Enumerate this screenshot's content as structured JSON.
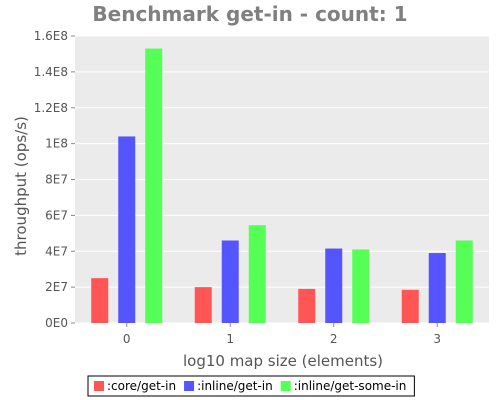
{
  "chart_data": {
    "type": "bar",
    "title": "Benchmark get-in - count: 1",
    "xlabel": "log10 map size (elements)",
    "ylabel": "throughput (ops/s)",
    "categories": [
      "0",
      "1",
      "2",
      "3"
    ],
    "ylim": [
      0,
      160000000
    ],
    "yticks": [
      {
        "value": 0,
        "label": "0E0"
      },
      {
        "value": 20000000,
        "label": "2E7"
      },
      {
        "value": 40000000,
        "label": "4E7"
      },
      {
        "value": 60000000,
        "label": "6E7"
      },
      {
        "value": 80000000,
        "label": "8E7"
      },
      {
        "value": 100000000,
        "label": "1E8"
      },
      {
        "value": 120000000,
        "label": "1.2E8"
      },
      {
        "value": 140000000,
        "label": "1.4E8"
      },
      {
        "value": 160000000,
        "label": "1.6E8"
      }
    ],
    "series": [
      {
        "name": ":core/get-in",
        "color": "#ff5555",
        "values": [
          25000000,
          20000000,
          19000000,
          18500000
        ]
      },
      {
        "name": ":inline/get-in",
        "color": "#5555ff",
        "values": [
          104000000,
          46000000,
          41500000,
          39000000
        ]
      },
      {
        "name": ":inline/get-some-in",
        "color": "#55ff55",
        "values": [
          153000000,
          54500000,
          41000000,
          46000000
        ]
      }
    ],
    "grid": true,
    "legend": "bottom"
  }
}
